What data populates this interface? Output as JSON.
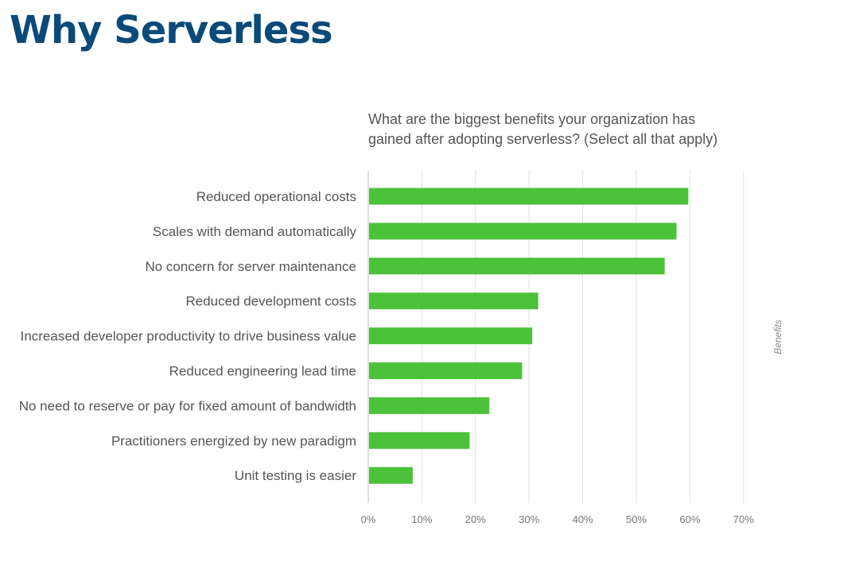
{
  "slide": {
    "title": "Why Serverless"
  },
  "chart_data": {
    "type": "bar",
    "orientation": "horizontal",
    "title_lines": [
      "What are the biggest benefits your organization has",
      "gained after adopting serverless? (Select all that apply)"
    ],
    "categories": [
      "Reduced operational costs",
      "Scales with demand automatically",
      "No concern for server maintenance",
      "Reduced development costs",
      "Increased developer productivity to drive business value",
      "Reduced engineering lead time",
      "No need to reserve or pay for fixed amount of bandwidth",
      "Practitioners energized by new paradigm",
      "Unit testing is easier"
    ],
    "series": [
      {
        "values": [
          59.7,
          57.5,
          55.3,
          31.7,
          30.6,
          28.7,
          22.6,
          18.9,
          8.3
        ]
      }
    ],
    "xlim": [
      0,
      70
    ],
    "x_ticks": [
      "0%",
      "10%",
      "20%",
      "30%",
      "40%",
      "50%",
      "60%",
      "70%"
    ],
    "side_label": "Benefits",
    "grid": true,
    "bar_color": "#4cc23a",
    "grid_color": "#e2e2e2",
    "axis_color": "#bdbdbd"
  }
}
